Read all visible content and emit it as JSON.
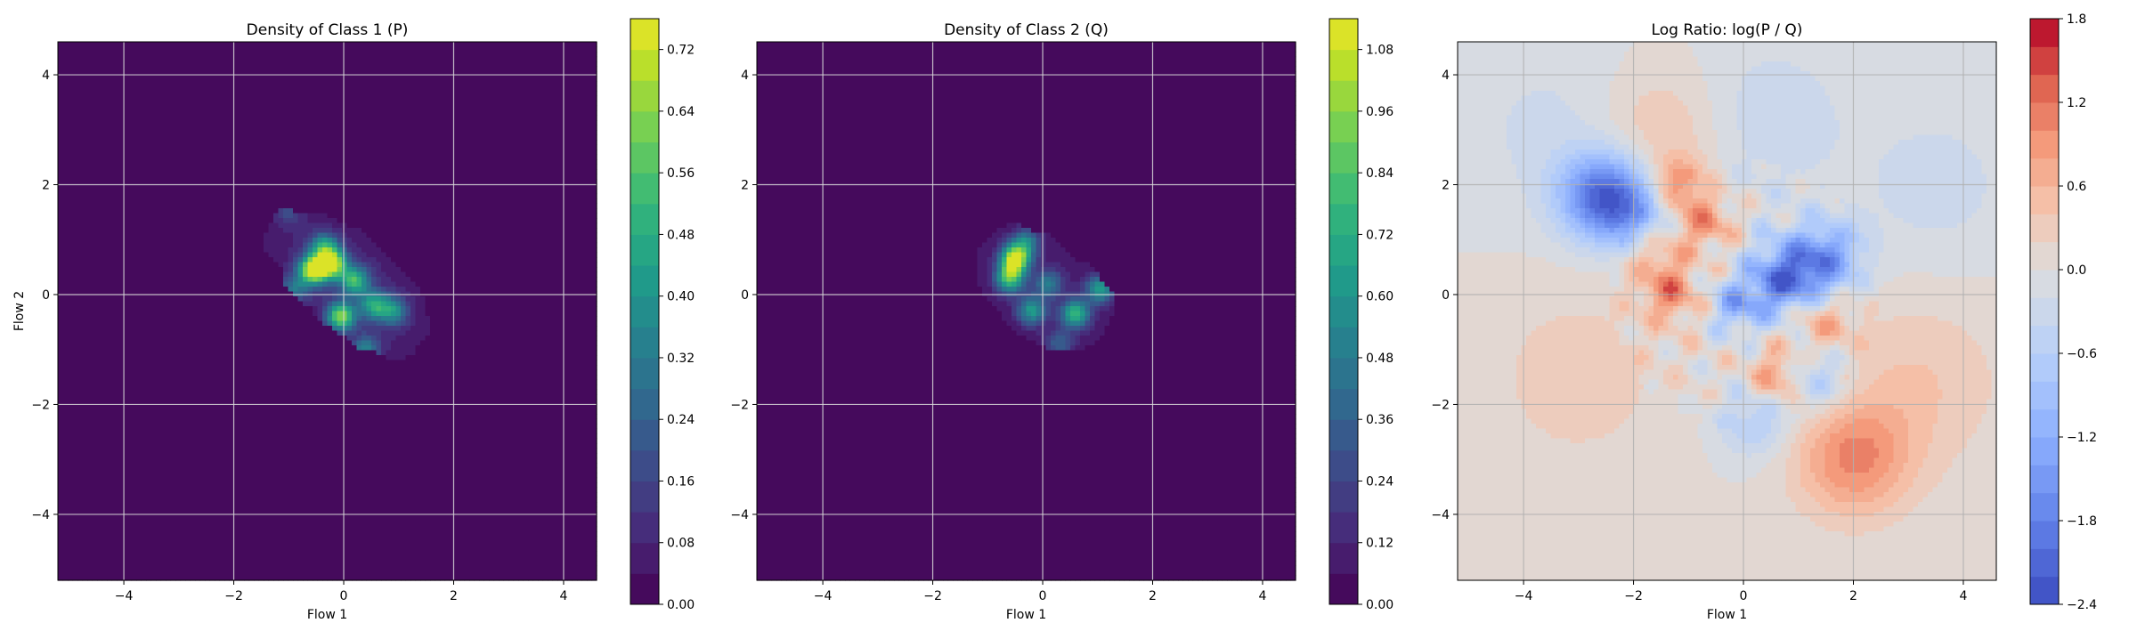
{
  "chart_data": [
    {
      "type": "heatmap",
      "title": "Density of Class 1 (P)",
      "xlabel": "Flow 1",
      "ylabel": "Flow 2",
      "xlim": [
        -5.2,
        4.6
      ],
      "ylim": [
        -5.2,
        4.6
      ],
      "xticks": [
        -4,
        -2,
        0,
        2,
        4
      ],
      "yticks": [
        -4,
        -2,
        0,
        2,
        4
      ],
      "grid": true,
      "colormap": "viridis",
      "colorbar": {
        "min": 0.0,
        "max": 0.76,
        "levels": 0.04,
        "ticks": [
          0.0,
          0.08,
          0.16,
          0.24,
          0.32,
          0.4,
          0.48,
          0.56,
          0.64,
          0.72
        ]
      },
      "background_color": "#440154",
      "blob": {
        "center": [
          0.1,
          0.2
        ],
        "rotation_deg": -40,
        "sx": 1.8,
        "sy": 0.85
      },
      "peaks": [
        {
          "x": -0.55,
          "y": 0.45,
          "v": 0.74
        },
        {
          "x": -0.2,
          "y": 0.55,
          "v": 0.62
        },
        {
          "x": -0.05,
          "y": -0.4,
          "v": 0.58
        },
        {
          "x": 0.2,
          "y": 0.25,
          "v": 0.45
        },
        {
          "x": -0.35,
          "y": 0.85,
          "v": 0.4
        },
        {
          "x": 0.55,
          "y": -0.2,
          "v": 0.38
        },
        {
          "x": 0.9,
          "y": -0.3,
          "v": 0.32
        },
        {
          "x": 0.4,
          "y": -1.0,
          "v": 0.3
        },
        {
          "x": -0.9,
          "y": 0.1,
          "v": 0.25
        },
        {
          "x": -1.0,
          "y": 1.5,
          "v": 0.12
        }
      ]
    },
    {
      "type": "heatmap",
      "title": "Density of Class 2 (Q)",
      "xlabel": "Flow 1",
      "ylabel": "",
      "xlim": [
        -5.2,
        4.6
      ],
      "ylim": [
        -5.2,
        4.6
      ],
      "xticks": [
        -4,
        -2,
        0,
        2,
        4
      ],
      "yticks": [
        -4,
        -2,
        0,
        2,
        4
      ],
      "grid": true,
      "colormap": "viridis",
      "colorbar": {
        "min": 0.0,
        "max": 1.14,
        "levels": 0.06,
        "ticks": [
          0.0,
          0.12,
          0.24,
          0.36,
          0.48,
          0.6,
          0.72,
          0.84,
          0.96,
          1.08
        ]
      },
      "background_color": "#440154",
      "blob": {
        "center": [
          0.0,
          0.1
        ],
        "rotation_deg": -35,
        "sx": 1.5,
        "sy": 0.9
      },
      "peaks": [
        {
          "x": -0.5,
          "y": 0.65,
          "v": 1.05
        },
        {
          "x": -0.6,
          "y": 0.3,
          "v": 0.75
        },
        {
          "x": 0.6,
          "y": -0.35,
          "v": 0.7
        },
        {
          "x": 1.05,
          "y": 0.1,
          "v": 0.6
        },
        {
          "x": -0.2,
          "y": -0.3,
          "v": 0.55
        },
        {
          "x": -0.3,
          "y": 0.95,
          "v": 0.45
        },
        {
          "x": 0.1,
          "y": 0.2,
          "v": 0.4
        },
        {
          "x": 0.3,
          "y": -0.9,
          "v": 0.3
        },
        {
          "x": -1.3,
          "y": 1.5,
          "v": 0.15
        }
      ]
    },
    {
      "type": "heatmap",
      "title": "Log Ratio: log(P / Q)",
      "xlabel": "Flow 1",
      "ylabel": "",
      "xlim": [
        -5.2,
        4.6
      ],
      "ylim": [
        -5.2,
        4.6
      ],
      "xticks": [
        -4,
        -2,
        0,
        2,
        4
      ],
      "yticks": [
        -4,
        -2,
        0,
        2,
        4
      ],
      "grid": true,
      "colormap": "coolwarm",
      "colorbar": {
        "min": -2.4,
        "max": 1.8,
        "levels": 0.2,
        "ticks": [
          -2.4,
          -1.8,
          -1.2,
          -0.6,
          0.0,
          0.6,
          1.2,
          1.8
        ]
      },
      "background_value": 0.0,
      "features": [
        {
          "x": -2.6,
          "y": 1.8,
          "v": -1.8,
          "r": 0.55
        },
        {
          "x": -2.0,
          "y": 1.5,
          "v": -1.0,
          "r": 0.5
        },
        {
          "x": 1.0,
          "y": 0.4,
          "v": -1.4,
          "r": 0.5
        },
        {
          "x": 1.6,
          "y": 0.7,
          "v": -1.0,
          "r": 0.45
        },
        {
          "x": 0.6,
          "y": 0.2,
          "v": -0.9,
          "r": 0.4
        },
        {
          "x": -0.1,
          "y": -0.2,
          "v": -1.1,
          "r": 0.35
        },
        {
          "x": 1.3,
          "y": -1.5,
          "v": -0.8,
          "r": 0.45
        },
        {
          "x": 0.2,
          "y": -2.3,
          "v": -0.7,
          "r": 0.45
        },
        {
          "x": -1.2,
          "y": 2.0,
          "v": 1.0,
          "r": 0.35
        },
        {
          "x": -0.7,
          "y": 1.3,
          "v": 0.9,
          "r": 0.35
        },
        {
          "x": -1.6,
          "y": 0.7,
          "v": 0.7,
          "r": 0.4
        },
        {
          "x": -1.3,
          "y": 0.0,
          "v": 0.9,
          "r": 0.35
        },
        {
          "x": 0.6,
          "y": -1.5,
          "v": 1.0,
          "r": 0.35
        },
        {
          "x": 1.4,
          "y": -0.5,
          "v": 0.8,
          "r": 0.4
        },
        {
          "x": 2.0,
          "y": -3.0,
          "v": 1.0,
          "r": 0.75
        },
        {
          "x": -1.5,
          "y": 3.0,
          "v": 0.45,
          "r": 0.8
        },
        {
          "x": 3.2,
          "y": -1.6,
          "v": 0.4,
          "r": 1.1
        },
        {
          "x": -3.0,
          "y": -1.5,
          "v": 0.3,
          "r": 1.3
        },
        {
          "x": 0.5,
          "y": 3.2,
          "v": -0.35,
          "r": 1.0
        },
        {
          "x": -3.5,
          "y": 3.0,
          "v": -0.25,
          "r": 1.2
        },
        {
          "x": 3.5,
          "y": 2.0,
          "v": -0.3,
          "r": 1.0
        }
      ]
    }
  ]
}
